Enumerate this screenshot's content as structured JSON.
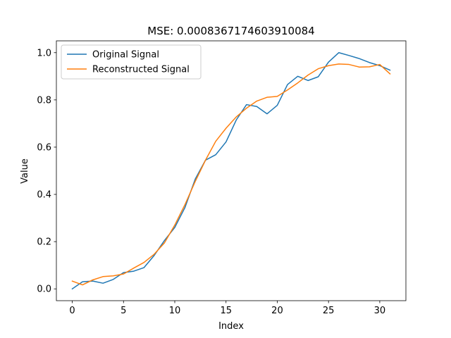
{
  "chart_data": {
    "type": "line",
    "title": "MSE: 0.0008367174603910084",
    "xlabel": "Index",
    "ylabel": "Value",
    "xlim": [
      -1.55,
      32.55
    ],
    "ylim": [
      -0.05,
      1.05
    ],
    "x_ticks": [
      0,
      5,
      10,
      15,
      20,
      25,
      30
    ],
    "y_ticks": [
      0.0,
      0.2,
      0.4,
      0.6,
      0.8,
      1.0
    ],
    "x_tick_labels": [
      "0",
      "5",
      "10",
      "15",
      "20",
      "25",
      "30"
    ],
    "y_tick_labels": [
      "0.0",
      "0.2",
      "0.4",
      "0.6",
      "0.8",
      "1.0"
    ],
    "grid": false,
    "legend_position": "top-left",
    "x": [
      0,
      1,
      2,
      3,
      4,
      5,
      6,
      7,
      8,
      9,
      10,
      11,
      12,
      13,
      14,
      15,
      16,
      17,
      18,
      19,
      20,
      21,
      22,
      23,
      24,
      25,
      26,
      27,
      28,
      29,
      30,
      31
    ],
    "series": [
      {
        "name": "Original Signal",
        "color": "#1f77b4",
        "values": [
          0.0,
          0.03,
          0.033,
          0.024,
          0.04,
          0.069,
          0.075,
          0.09,
          0.142,
          0.205,
          0.26,
          0.345,
          0.465,
          0.545,
          0.568,
          0.622,
          0.715,
          0.78,
          0.772,
          0.741,
          0.777,
          0.865,
          0.9,
          0.882,
          0.898,
          0.96,
          1.0,
          0.988,
          0.975,
          0.958,
          0.945,
          0.926
        ]
      },
      {
        "name": "Reconstructed Signal",
        "color": "#ff7f0e",
        "values": [
          0.033,
          0.017,
          0.038,
          0.052,
          0.055,
          0.063,
          0.088,
          0.112,
          0.147,
          0.195,
          0.27,
          0.357,
          0.455,
          0.545,
          0.625,
          0.68,
          0.728,
          0.765,
          0.795,
          0.811,
          0.815,
          0.842,
          0.872,
          0.905,
          0.932,
          0.945,
          0.952,
          0.95,
          0.939,
          0.94,
          0.95,
          0.91
        ]
      }
    ]
  }
}
